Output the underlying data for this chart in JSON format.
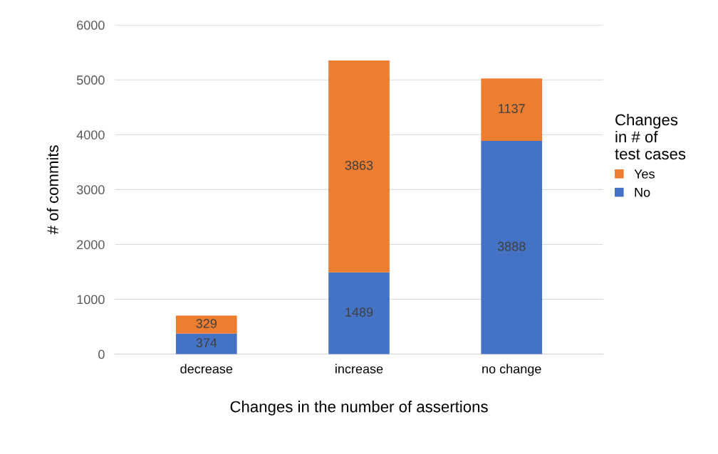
{
  "chart_data": {
    "type": "bar",
    "stacked": true,
    "xlabel": "Changes in the number of assertions",
    "ylabel": "# of commits",
    "legend_title": "Changes\nin # of\ntest cases",
    "categories": [
      "decrease",
      "increase",
      "no change"
    ],
    "series": [
      {
        "name": "No",
        "color": "#4472c4",
        "values": [
          374,
          1489,
          3888
        ]
      },
      {
        "name": "Yes",
        "color": "#ed7d31",
        "values": [
          329,
          3863,
          1137
        ]
      }
    ],
    "ylim": [
      0,
      6000
    ],
    "yticks": [
      0,
      1000,
      2000,
      3000,
      4000,
      5000,
      6000
    ],
    "grid": "y",
    "legend": "right",
    "data_labels": true
  }
}
